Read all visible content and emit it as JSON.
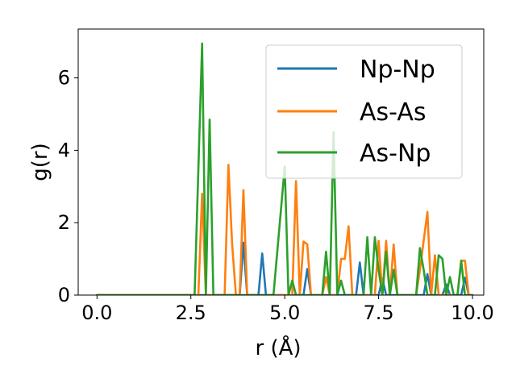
{
  "chart_data": {
    "type": "line",
    "title": "",
    "xlabel": "r (Å)",
    "ylabel": "g(r)",
    "xlim": [
      -0.5,
      10.3
    ],
    "ylim": [
      0,
      7.35
    ],
    "xticks": [
      0.0,
      2.5,
      5.0,
      7.5,
      10.0
    ],
    "xtick_labels": [
      "0.0",
      "2.5",
      "5.0",
      "7.5",
      "10.0"
    ],
    "yticks": [
      0,
      2,
      4,
      6
    ],
    "ytick_labels": [
      "0",
      "2",
      "4",
      "6"
    ],
    "grid": false,
    "legend": {
      "placement": "top-right"
    },
    "series": [
      {
        "name": "Np-Np",
        "color": "#1f77b4",
        "points": [
          [
            0,
            0
          ],
          [
            3.8,
            0
          ],
          [
            3.9,
            1.45
          ],
          [
            4.0,
            0
          ],
          [
            4.3,
            0
          ],
          [
            4.4,
            1.15
          ],
          [
            4.5,
            0
          ],
          [
            5.5,
            0
          ],
          [
            5.6,
            0.72
          ],
          [
            5.7,
            0
          ],
          [
            6.9,
            0
          ],
          [
            7.0,
            0.9
          ],
          [
            7.1,
            0
          ],
          [
            7.5,
            0
          ],
          [
            7.6,
            0.45
          ],
          [
            7.7,
            0
          ],
          [
            8.7,
            0
          ],
          [
            8.8,
            0.58
          ],
          [
            8.9,
            0
          ],
          [
            9.2,
            0
          ],
          [
            9.3,
            0.3
          ],
          [
            9.4,
            0
          ],
          [
            9.7,
            0
          ],
          [
            9.8,
            0.48
          ],
          [
            9.9,
            0
          ],
          [
            10.0,
            0
          ]
        ]
      },
      {
        "name": "As-As",
        "color": "#ff7f0e",
        "points": [
          [
            0,
            0
          ],
          [
            2.7,
            0
          ],
          [
            2.8,
            2.8
          ],
          [
            2.9,
            0
          ],
          [
            3.4,
            0
          ],
          [
            3.5,
            3.6
          ],
          [
            3.6,
            1.4
          ],
          [
            3.7,
            0
          ],
          [
            3.8,
            0
          ],
          [
            3.9,
            2.9
          ],
          [
            4.0,
            0
          ],
          [
            5.2,
            0
          ],
          [
            5.3,
            3.15
          ],
          [
            5.4,
            0
          ],
          [
            5.5,
            1.48
          ],
          [
            5.6,
            1.4
          ],
          [
            5.7,
            0
          ],
          [
            6.0,
            0
          ],
          [
            6.1,
            0.5
          ],
          [
            6.2,
            0
          ],
          [
            6.4,
            0
          ],
          [
            6.5,
            1.0
          ],
          [
            6.6,
            1.0
          ],
          [
            6.7,
            1.9
          ],
          [
            6.8,
            0
          ],
          [
            7.4,
            0
          ],
          [
            7.5,
            1.5
          ],
          [
            7.6,
            0
          ],
          [
            7.7,
            1.5
          ],
          [
            7.8,
            0
          ],
          [
            7.9,
            1.4
          ],
          [
            8.0,
            0
          ],
          [
            8.5,
            0
          ],
          [
            8.6,
            0.7
          ],
          [
            8.8,
            2.3
          ],
          [
            8.9,
            0
          ],
          [
            9.0,
            1.1
          ],
          [
            9.1,
            0
          ],
          [
            9.6,
            0
          ],
          [
            9.7,
            0.95
          ],
          [
            9.8,
            0.95
          ],
          [
            9.9,
            0
          ]
        ]
      },
      {
        "name": "As-Np",
        "color": "#2ca02c",
        "points": [
          [
            0,
            0
          ],
          [
            2.6,
            0
          ],
          [
            2.8,
            6.95
          ],
          [
            2.9,
            0
          ],
          [
            3.0,
            4.85
          ],
          [
            3.1,
            0
          ],
          [
            4.7,
            0
          ],
          [
            5.0,
            3.55
          ],
          [
            5.1,
            0
          ],
          [
            5.2,
            0.4
          ],
          [
            5.3,
            0
          ],
          [
            6.0,
            0
          ],
          [
            6.1,
            1.2
          ],
          [
            6.2,
            0
          ],
          [
            6.3,
            4.5
          ],
          [
            6.4,
            0
          ],
          [
            6.5,
            0.4
          ],
          [
            6.6,
            0
          ],
          [
            7.1,
            0
          ],
          [
            7.2,
            1.6
          ],
          [
            7.3,
            0
          ],
          [
            7.4,
            1.6
          ],
          [
            7.5,
            0.7
          ],
          [
            7.6,
            0
          ],
          [
            7.7,
            1.2
          ],
          [
            7.8,
            0
          ],
          [
            7.9,
            0.7
          ],
          [
            8.0,
            0
          ],
          [
            8.5,
            0
          ],
          [
            8.6,
            1.3
          ],
          [
            8.7,
            0.7
          ],
          [
            8.8,
            0
          ],
          [
            9.0,
            0
          ],
          [
            9.1,
            1.1
          ],
          [
            9.2,
            1.0
          ],
          [
            9.3,
            0
          ],
          [
            9.4,
            0.5
          ],
          [
            9.5,
            0
          ],
          [
            9.6,
            0
          ],
          [
            9.7,
            0.95
          ],
          [
            9.8,
            0
          ],
          [
            10.0,
            0
          ]
        ]
      }
    ]
  }
}
